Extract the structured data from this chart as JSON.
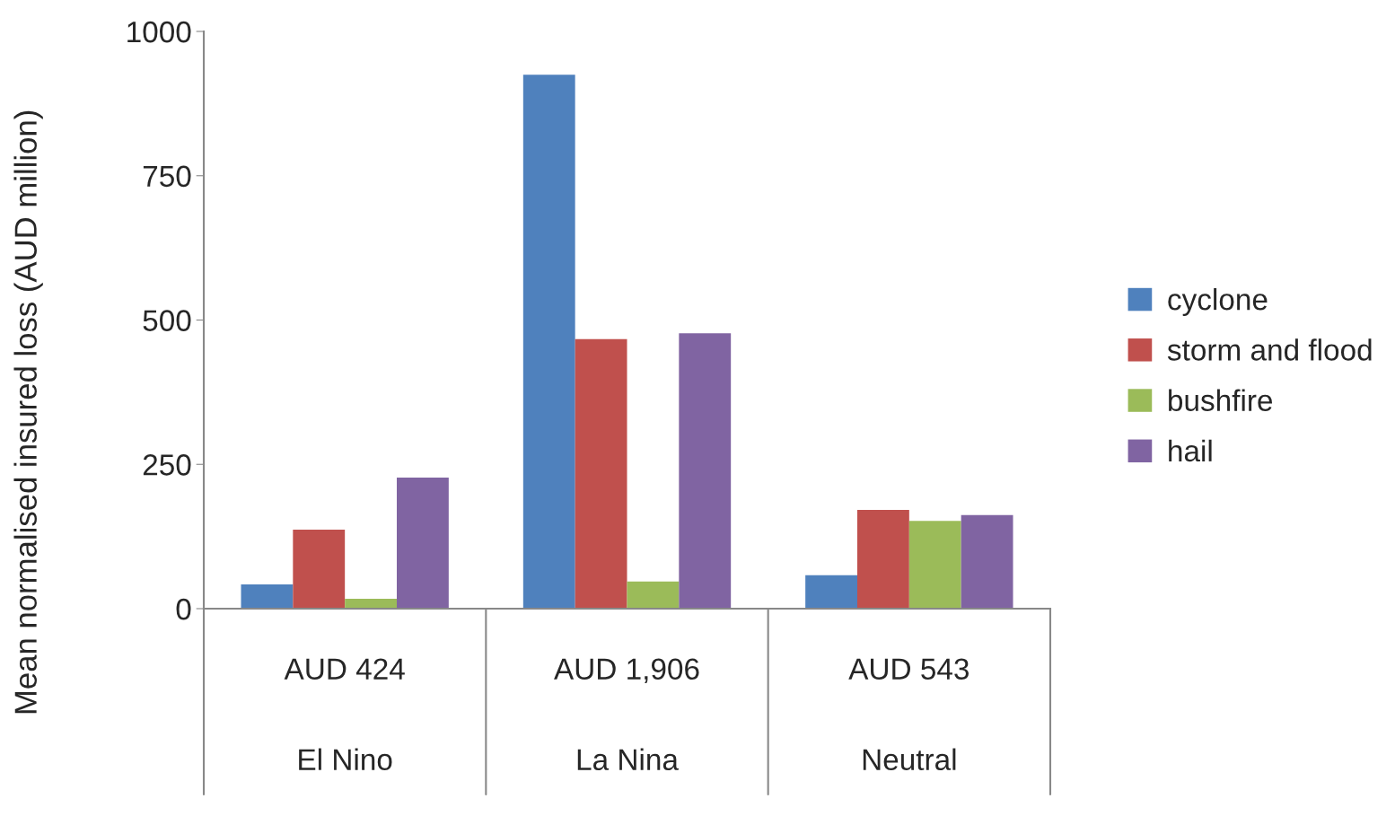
{
  "chart_data": {
    "type": "bar",
    "ylabel": "Mean normalised insured loss (AUD million)",
    "categories": [
      "El Nino",
      "La Nina",
      "Neutral"
    ],
    "totals": [
      "AUD 424",
      "AUD 1,906",
      "AUD 543"
    ],
    "series": [
      {
        "name": "cyclone",
        "color": "#4f81bd",
        "values": [
          42,
          925,
          58
        ]
      },
      {
        "name": "storm and flood",
        "color": "#c0504d",
        "values": [
          137,
          467,
          171
        ]
      },
      {
        "name": "bushfire",
        "color": "#9bbb59",
        "values": [
          17,
          47,
          152
        ]
      },
      {
        "name": "hail",
        "color": "#8064a2",
        "values": [
          227,
          477,
          162
        ]
      }
    ],
    "ylim": [
      0,
      1000
    ],
    "yticks": [
      0,
      250,
      500,
      750,
      1000
    ],
    "grid": false,
    "legend": "right"
  }
}
